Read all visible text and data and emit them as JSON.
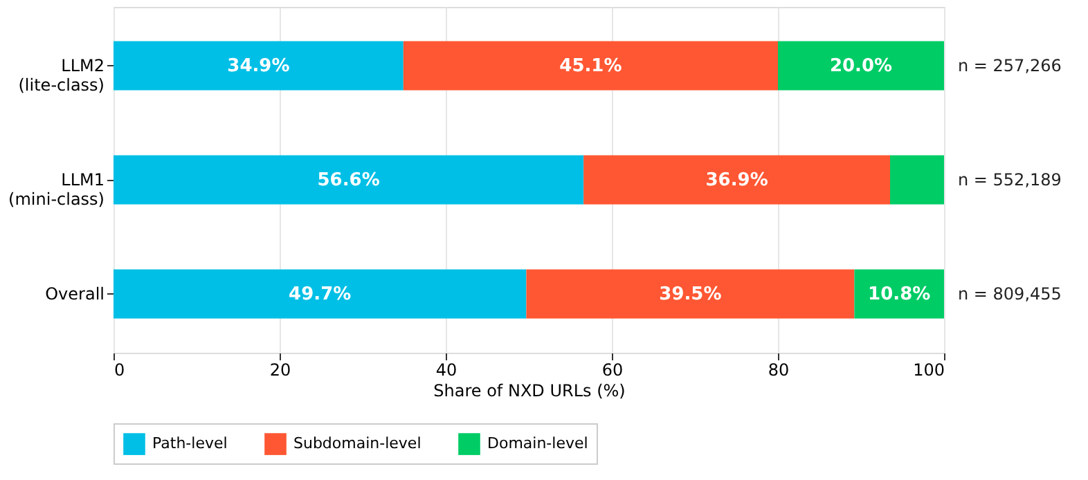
{
  "chart_data": {
    "type": "bar",
    "orientation": "horizontal",
    "stacked": true,
    "categories": [
      "LLM2\n(lite-class)",
      "LLM1\n(mini-class)",
      "Overall"
    ],
    "series": [
      {
        "name": "Path-level",
        "color": "#00bfe6",
        "values": [
          34.9,
          56.6,
          49.7
        ],
        "value_labels": [
          "34.9%",
          "56.6%",
          "49.7%"
        ]
      },
      {
        "name": "Subdomain-level",
        "color": "#ff5733",
        "values": [
          45.1,
          36.9,
          39.5
        ],
        "value_labels": [
          "45.1%",
          "36.9%",
          "39.5%"
        ]
      },
      {
        "name": "Domain-level",
        "color": "#00cc66",
        "values": [
          20.0,
          6.5,
          10.8
        ],
        "value_labels": [
          "20.0%",
          null,
          "10.8%"
        ]
      }
    ],
    "xlabel": "Share of NXD URLs (%)",
    "xlim": [
      0,
      100
    ],
    "xticks": [
      0,
      20,
      40,
      60,
      80,
      100
    ],
    "grid": "x",
    "legend": "bottom",
    "annotations": [
      "n = 257,266",
      "n = 552,189",
      "n = 809,455"
    ]
  }
}
